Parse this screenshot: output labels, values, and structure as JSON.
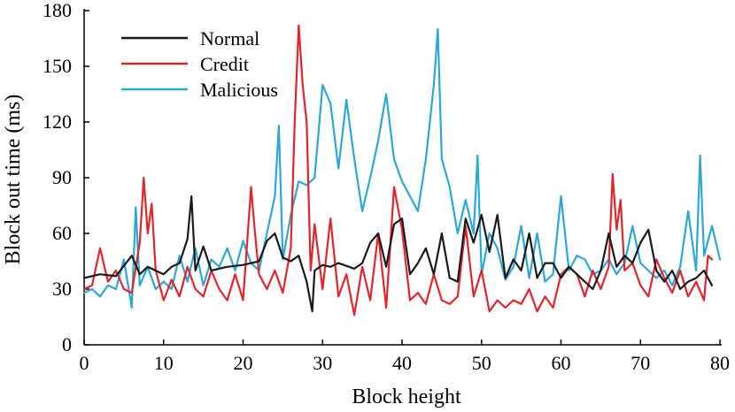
{
  "chart_data": {
    "type": "line",
    "title": "",
    "xlabel": "Block height",
    "ylabel": "Block out time (ms)",
    "xlim": [
      0,
      80
    ],
    "ylim": [
      0,
      180
    ],
    "x_ticks": [
      "0",
      "10",
      "20",
      "30",
      "40",
      "50",
      "60",
      "70",
      "80"
    ],
    "y_ticks": [
      "0",
      "30",
      "60",
      "90",
      "120",
      "150",
      "180"
    ],
    "grid": false,
    "legend_position": "top-left",
    "series": [
      {
        "name": "Normal",
        "color": "#1a1a1a",
        "x": [
          0,
          2,
          4,
          6,
          7,
          8,
          10,
          11,
          12,
          13,
          13.5,
          14,
          15,
          16,
          18,
          20,
          22,
          23,
          24,
          25,
          26,
          27,
          28,
          28.7,
          29,
          30,
          31,
          32,
          34,
          35,
          36,
          37,
          38,
          39,
          40,
          41,
          42,
          43,
          44,
          45,
          46,
          47,
          48,
          49,
          50,
          51,
          52,
          53,
          54,
          55,
          56,
          57,
          58,
          59,
          60,
          61,
          62,
          63,
          64,
          65,
          66,
          67,
          68,
          69,
          70,
          71,
          72,
          73,
          74,
          75,
          76,
          77,
          78,
          79
        ],
        "values": [
          36,
          38,
          37,
          48,
          38,
          42,
          38,
          42,
          44,
          57,
          80,
          40,
          53,
          40,
          42,
          43,
          45,
          56,
          60,
          47,
          45,
          48,
          34,
          18,
          40,
          43,
          42,
          44,
          41,
          44,
          55,
          60,
          42,
          65,
          68,
          38,
          44,
          52,
          38,
          60,
          36,
          34,
          68,
          55,
          70,
          50,
          70,
          36,
          46,
          40,
          60,
          36,
          44,
          44,
          36,
          42,
          38,
          34,
          30,
          40,
          60,
          42,
          48,
          44,
          55,
          62,
          40,
          34,
          40,
          30,
          34,
          36,
          40,
          32
        ],
        "note": ""
      },
      {
        "name": "Credit",
        "color": "#e0252c",
        "x": [
          0,
          1,
          2,
          3,
          4,
          5,
          6,
          7,
          7.5,
          8,
          8.5,
          9,
          10,
          11,
          12,
          13,
          14,
          15,
          16,
          17,
          18,
          19,
          20,
          21,
          21.5,
          22,
          23,
          24,
          25,
          26,
          26.5,
          27,
          27.5,
          28,
          28.5,
          29,
          30,
          31,
          32,
          33,
          34,
          35,
          36,
          37,
          38,
          39,
          40,
          41,
          42,
          43,
          44,
          45,
          46,
          47,
          48,
          49,
          50,
          51,
          52,
          53,
          54,
          55,
          56,
          57,
          58,
          59,
          60,
          61,
          62,
          63,
          64,
          65,
          66,
          66.5,
          67,
          67.5,
          68,
          69,
          70,
          71,
          72,
          73,
          74,
          75,
          76,
          77,
          78,
          78.5,
          79
        ],
        "values": [
          30,
          32,
          52,
          34,
          40,
          30,
          28,
          55,
          90,
          60,
          76,
          40,
          24,
          35,
          26,
          42,
          30,
          26,
          40,
          30,
          24,
          38,
          24,
          85,
          60,
          38,
          30,
          40,
          28,
          52,
          120,
          172,
          140,
          120,
          40,
          65,
          30,
          68,
          26,
          38,
          16,
          42,
          24,
          60,
          20,
          85,
          62,
          24,
          28,
          22,
          38,
          24,
          22,
          26,
          64,
          26,
          40,
          18,
          24,
          20,
          24,
          22,
          30,
          18,
          26,
          20,
          38,
          42,
          38,
          26,
          40,
          30,
          42,
          92,
          62,
          78,
          40,
          44,
          32,
          26,
          46,
          36,
          28,
          40,
          26,
          34,
          24,
          48,
          46
        ],
        "note": ""
      },
      {
        "name": "Malicious",
        "color": "#2ba8d8",
        "x": [
          0,
          1,
          2,
          3,
          4,
          5,
          6,
          6.5,
          7,
          8,
          9,
          10,
          11,
          12,
          13,
          14,
          15,
          16,
          17,
          18,
          19,
          20,
          21,
          22,
          23,
          24,
          24.5,
          25,
          26,
          27,
          28,
          29,
          30,
          31,
          32,
          33,
          34,
          35,
          36,
          37,
          38,
          39,
          40,
          41,
          42,
          43,
          44,
          44.5,
          45,
          46,
          47,
          48,
          49,
          49.5,
          50,
          51,
          52,
          53,
          54,
          55,
          56,
          57,
          58,
          59,
          60,
          61,
          62,
          63,
          64,
          65,
          66,
          67,
          68,
          69,
          70,
          71,
          72,
          73,
          74,
          75,
          76,
          77,
          77.5,
          78,
          79,
          80
        ],
        "values": [
          28,
          30,
          26,
          32,
          30,
          46,
          20,
          74,
          32,
          42,
          30,
          34,
          30,
          48,
          34,
          52,
          32,
          46,
          42,
          52,
          40,
          56,
          44,
          40,
          60,
          80,
          118,
          46,
          70,
          88,
          86,
          90,
          140,
          130,
          95,
          132,
          100,
          72,
          90,
          110,
          135,
          100,
          88,
          80,
          72,
          100,
          140,
          170,
          100,
          85,
          60,
          78,
          60,
          102,
          38,
          60,
          52,
          35,
          42,
          64,
          36,
          60,
          34,
          38,
          80,
          40,
          48,
          46,
          38,
          40,
          46,
          38,
          44,
          64,
          44,
          40,
          36,
          40,
          32,
          42,
          72,
          40,
          102,
          48,
          64,
          46
        ],
        "note": ""
      }
    ]
  }
}
